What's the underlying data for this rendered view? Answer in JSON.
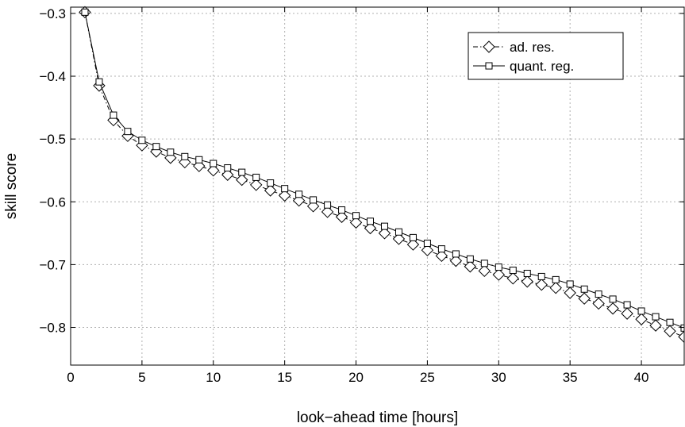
{
  "chart_data": {
    "type": "line",
    "title": "",
    "xlabel": "look−ahead time [hours]",
    "ylabel": "skill score",
    "xlim": [
      0,
      43
    ],
    "ylim": [
      -0.86,
      -0.29
    ],
    "grid": true,
    "legend_position": "top-right",
    "x_ticks": [
      0,
      5,
      10,
      15,
      20,
      25,
      30,
      35,
      40
    ],
    "x_tick_labels": [
      "0",
      "5",
      "10",
      "15",
      "20",
      "25",
      "30",
      "35",
      "40"
    ],
    "y_ticks": [
      -0.3,
      -0.4,
      -0.5,
      -0.6,
      -0.7,
      -0.8
    ],
    "y_tick_labels": [
      "−0.3",
      "−0.4",
      "−0.5",
      "−0.6",
      "−0.7",
      "−0.8"
    ],
    "x": [
      1,
      2,
      3,
      4,
      5,
      6,
      7,
      8,
      9,
      10,
      11,
      12,
      13,
      14,
      15,
      16,
      17,
      18,
      19,
      20,
      21,
      22,
      23,
      24,
      25,
      26,
      27,
      28,
      29,
      30,
      31,
      32,
      33,
      34,
      35,
      36,
      37,
      38,
      39,
      40,
      41,
      42,
      43
    ],
    "series": [
      {
        "name": "ad. res.",
        "marker": "diamond",
        "line": "dashdot",
        "values": [
          -0.298,
          -0.415,
          -0.47,
          -0.495,
          -0.51,
          -0.52,
          -0.53,
          -0.537,
          -0.543,
          -0.55,
          -0.557,
          -0.565,
          -0.573,
          -0.582,
          -0.59,
          -0.598,
          -0.607,
          -0.616,
          -0.624,
          -0.633,
          -0.642,
          -0.65,
          -0.659,
          -0.668,
          -0.677,
          -0.686,
          -0.694,
          -0.703,
          -0.71,
          -0.716,
          -0.722,
          -0.727,
          -0.732,
          -0.737,
          -0.745,
          -0.754,
          -0.762,
          -0.77,
          -0.778,
          -0.787,
          -0.797,
          -0.806,
          -0.815
        ]
      },
      {
        "name": "quant. reg.",
        "marker": "square",
        "line": "solid",
        "values": [
          -0.298,
          -0.409,
          -0.462,
          -0.488,
          -0.502,
          -0.512,
          -0.521,
          -0.528,
          -0.533,
          -0.539,
          -0.546,
          -0.553,
          -0.561,
          -0.57,
          -0.579,
          -0.588,
          -0.597,
          -0.605,
          -0.613,
          -0.622,
          -0.631,
          -0.639,
          -0.648,
          -0.657,
          -0.666,
          -0.675,
          -0.683,
          -0.691,
          -0.698,
          -0.704,
          -0.709,
          -0.714,
          -0.719,
          -0.724,
          -0.731,
          -0.739,
          -0.747,
          -0.755,
          -0.764,
          -0.774,
          -0.783,
          -0.792,
          -0.801
        ]
      }
    ]
  }
}
